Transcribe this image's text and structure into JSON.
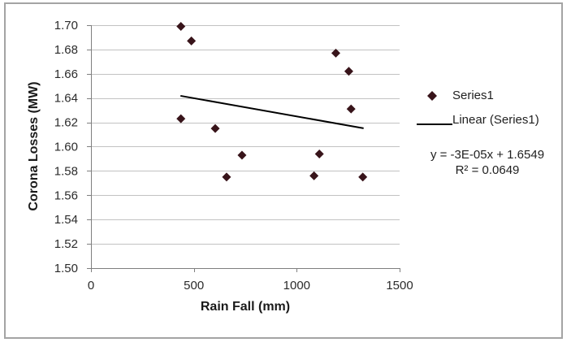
{
  "chart_data": {
    "type": "scatter",
    "title": "",
    "xlabel": "Rain Fall (mm)",
    "ylabel": "Corona Losses (MW)",
    "xlim": [
      0,
      1500
    ],
    "ylim": [
      1.5,
      1.7
    ],
    "x_ticks": [
      0,
      500,
      1000,
      1500
    ],
    "y_ticks": [
      1.5,
      1.52,
      1.54,
      1.56,
      1.58,
      1.6,
      1.62,
      1.64,
      1.66,
      1.68,
      1.7
    ],
    "grid": "horizontal",
    "series": [
      {
        "name": "Series1",
        "type": "scatter",
        "marker": "diamond",
        "color": "#38141a",
        "points": [
          [
            437,
            1.699
          ],
          [
            437,
            1.623
          ],
          [
            488,
            1.687
          ],
          [
            604,
            1.615
          ],
          [
            659,
            1.575
          ],
          [
            734,
            1.593
          ],
          [
            1084,
            1.576
          ],
          [
            1110,
            1.594
          ],
          [
            1190,
            1.677
          ],
          [
            1253,
            1.662
          ],
          [
            1264,
            1.631
          ],
          [
            1321,
            1.575
          ]
        ]
      },
      {
        "name": "Linear (Series1)",
        "type": "line",
        "color": "#000000",
        "slope": -3e-05,
        "intercept": 1.6549,
        "x_range": [
          435,
          1325
        ]
      }
    ],
    "legend": {
      "position": "right",
      "entries": [
        "Series1",
        "Linear (Series1)"
      ]
    },
    "annotations": {
      "equation": "y = -3E-05x + 1.6549",
      "r_squared": "R² = 0.0649"
    },
    "style": {
      "grid_color": "#c2c2c2",
      "axis_color": "#7f7f7f",
      "frame_border_color": "#a4a4a4",
      "tick_label_color": "#2b2b2b",
      "background": "#ffffff"
    }
  }
}
